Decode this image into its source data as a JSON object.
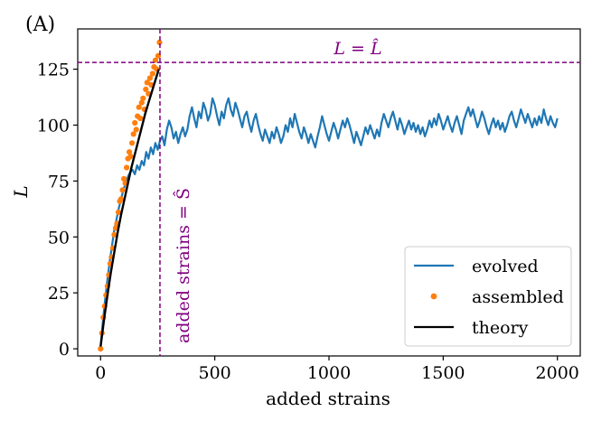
{
  "panel_label": "(A)",
  "chart_data": {
    "type": "line",
    "xlabel": "added strains",
    "ylabel": "L",
    "xlim": [
      -100,
      2100
    ],
    "ylim": [
      -3.2,
      143
    ],
    "xticks": [
      0,
      500,
      1000,
      1500,
      2000
    ],
    "yticks": [
      0,
      25,
      50,
      75,
      100,
      125
    ],
    "grid": false,
    "legend": {
      "placement": "lower right",
      "entries": [
        "evolved",
        "assembled",
        "theory"
      ]
    },
    "colors": {
      "evolved": "#1f77b4",
      "assembled": "#ff7f0e",
      "theory": "#000000",
      "reference": "#800080"
    },
    "reference_lines": [
      {
        "orientation": "horizontal",
        "value": 128,
        "label": "L = L̂"
      },
      {
        "orientation": "vertical",
        "value": 260,
        "label": "added strains = Ŝ"
      }
    ],
    "series": [
      {
        "name": "evolved",
        "style": "line",
        "x": [
          0,
          10,
          20,
          30,
          40,
          50,
          60,
          70,
          80,
          90,
          100,
          110,
          120,
          130,
          140,
          150,
          160,
          170,
          180,
          190,
          200,
          210,
          220,
          230,
          240,
          250,
          260,
          270,
          280,
          290,
          300,
          310,
          320,
          330,
          340,
          350,
          360,
          370,
          380,
          390,
          400,
          410,
          420,
          430,
          440,
          450,
          460,
          470,
          480,
          490,
          500,
          510,
          520,
          530,
          540,
          550,
          560,
          570,
          580,
          590,
          600,
          610,
          620,
          630,
          640,
          650,
          660,
          670,
          680,
          690,
          700,
          710,
          720,
          730,
          740,
          750,
          760,
          770,
          780,
          790,
          800,
          810,
          820,
          830,
          840,
          850,
          860,
          870,
          880,
          890,
          900,
          910,
          920,
          930,
          940,
          950,
          960,
          970,
          980,
          990,
          1000,
          1010,
          1020,
          1030,
          1040,
          1050,
          1060,
          1070,
          1080,
          1090,
          1100,
          1110,
          1120,
          1130,
          1140,
          1150,
          1160,
          1170,
          1180,
          1190,
          1200,
          1210,
          1220,
          1230,
          1240,
          1250,
          1260,
          1270,
          1280,
          1290,
          1300,
          1310,
          1320,
          1330,
          1340,
          1350,
          1360,
          1370,
          1380,
          1390,
          1400,
          1410,
          1420,
          1430,
          1440,
          1450,
          1460,
          1470,
          1480,
          1490,
          1500,
          1510,
          1520,
          1530,
          1540,
          1550,
          1560,
          1570,
          1580,
          1590,
          1600,
          1610,
          1620,
          1630,
          1640,
          1650,
          1660,
          1670,
          1680,
          1690,
          1700,
          1710,
          1720,
          1730,
          1740,
          1750,
          1760,
          1770,
          1780,
          1790,
          1800,
          1810,
          1820,
          1830,
          1840,
          1850,
          1860,
          1870,
          1880,
          1890,
          1900,
          1910,
          1920,
          1930,
          1940,
          1950,
          1960,
          1970,
          1980,
          1990,
          2000
        ],
        "y": [
          1,
          12,
          22,
          31,
          39,
          46,
          53,
          58,
          63,
          67,
          71,
          74,
          77,
          79,
          80,
          78,
          82,
          80,
          84,
          82,
          88,
          85,
          90,
          87,
          92,
          89,
          93,
          95,
          91,
          98,
          102,
          99,
          94,
          97,
          92,
          96,
          99,
          95,
          98,
          104,
          108,
          103,
          99,
          106,
          103,
          110,
          107,
          102,
          105,
          112,
          109,
          104,
          100,
          106,
          103,
          109,
          112,
          107,
          104,
          110,
          107,
          103,
          99,
          104,
          106,
          101,
          97,
          102,
          105,
          100,
          96,
          93,
          98,
          95,
          92,
          97,
          94,
          99,
          96,
          92,
          95,
          100,
          97,
          103,
          99,
          105,
          101,
          97,
          94,
          99,
          96,
          92,
          96,
          93,
          90,
          95,
          99,
          104,
          100,
          96,
          93,
          97,
          101,
          98,
          94,
          98,
          102,
          99,
          103,
          100,
          96,
          92,
          97,
          94,
          91,
          95,
          99,
          96,
          100,
          97,
          94,
          98,
          95,
          101,
          105,
          102,
          99,
          103,
          106,
          102,
          98,
          103,
          100,
          96,
          99,
          102,
          98,
          101,
          97,
          100,
          96,
          99,
          95,
          98,
          102,
          99,
          103,
          100,
          105,
          102,
          98,
          101,
          104,
          100,
          97,
          101,
          104,
          100,
          96,
          102,
          105,
          108,
          104,
          107,
          103,
          99,
          102,
          106,
          103,
          99,
          96,
          100,
          103,
          99,
          102,
          98,
          101,
          97,
          100,
          104,
          106,
          102,
          99,
          103,
          107,
          104,
          101,
          105,
          102,
          99,
          103,
          100,
          104,
          101,
          107,
          103,
          100,
          104,
          101,
          99,
          103
        ]
      },
      {
        "name": "assembled",
        "style": "points",
        "x": [
          0,
          6,
          12,
          18,
          24,
          30,
          36,
          42,
          48,
          54,
          60,
          66,
          72,
          78,
          84,
          90,
          96,
          102,
          108,
          114,
          120,
          126,
          132,
          138,
          144,
          150,
          156,
          162,
          168,
          174,
          180,
          186,
          192,
          198,
          204,
          210,
          216,
          222,
          228,
          234,
          240,
          246,
          252,
          258
        ],
        "y": [
          0,
          7,
          14,
          19,
          24,
          28,
          33,
          38,
          41,
          45,
          51,
          54,
          56,
          61,
          66,
          67,
          71,
          76,
          74,
          81,
          85,
          88,
          86,
          92,
          96,
          101,
          98,
          104,
          108,
          103,
          110,
          112,
          107,
          116,
          119,
          114,
          121,
          118,
          123,
          126,
          129,
          125,
          131,
          137
        ]
      },
      {
        "name": "theory",
        "style": "line",
        "x": [
          0,
          15,
          30,
          45,
          60,
          75,
          90,
          105,
          120,
          135,
          150,
          165,
          180,
          195,
          210,
          225,
          240,
          255
        ],
        "y": [
          1,
          13,
          24,
          34,
          43,
          52,
          60,
          67,
          74,
          81,
          87,
          93,
          99,
          105,
          110,
          115,
          120,
          125
        ]
      }
    ]
  }
}
